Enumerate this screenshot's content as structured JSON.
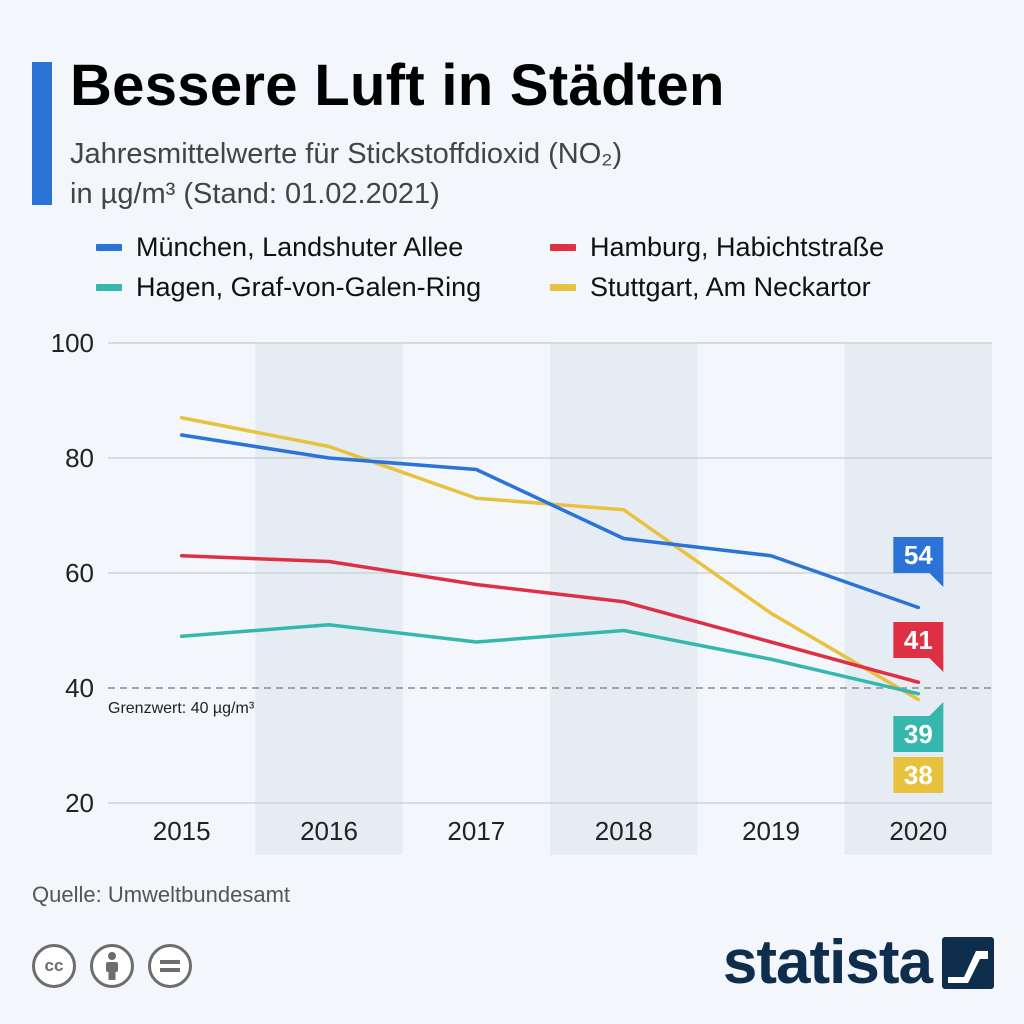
{
  "title": "Bessere Luft in Städten",
  "subtitle": "Jahresmittelwerte für Stickstoffdioxid (NO₂)\nin µg/m³ (Stand: 01.02.2021)",
  "source": "Quelle: Umweltbundesamt",
  "brand": "statista",
  "icons": {
    "cc": "cc-icon",
    "by": "person-icon",
    "nd": "equals-icon",
    "brand": "statista-logo-icon"
  },
  "cc_text": "cc",
  "colors": {
    "accent": "#2b73d7",
    "background": "#f3f6fa",
    "band": "#e6ecf4",
    "grid": "#c7ccd2",
    "threshold": "#9a9a9a",
    "brand": "#0f2d4d"
  },
  "chart_data": {
    "type": "line",
    "x": [
      2015,
      2016,
      2017,
      2018,
      2019,
      2020
    ],
    "x_tick_labels": [
      "2015",
      "2016",
      "2017",
      "2018",
      "2019",
      "2020"
    ],
    "ylim": [
      20,
      100
    ],
    "y_ticks": [
      20,
      40,
      60,
      80,
      100
    ],
    "grid": true,
    "legend_position": "top",
    "shaded_columns": [
      "2016",
      "2018",
      "2020"
    ],
    "series": [
      {
        "name": "München, Landshuter Allee",
        "color": "#2b73d7",
        "values": [
          84,
          80,
          78,
          66,
          63,
          54
        ],
        "end_label": "54"
      },
      {
        "name": "Hamburg, Habichtstraße",
        "color": "#dd3045",
        "values": [
          63,
          62,
          58,
          55,
          48,
          41
        ],
        "end_label": "41"
      },
      {
        "name": "Hagen, Graf-von-Galen-Ring",
        "color": "#35b7ae",
        "values": [
          49,
          51,
          48,
          50,
          45,
          39
        ],
        "end_label": "39"
      },
      {
        "name": "Stuttgart, Am Neckartor",
        "color": "#e8c23c",
        "values": [
          87,
          82,
          73,
          71,
          53,
          38
        ],
        "end_label": "38"
      }
    ],
    "threshold": {
      "value": 40,
      "label": "Grenzwert: 40 µg/m³"
    }
  }
}
